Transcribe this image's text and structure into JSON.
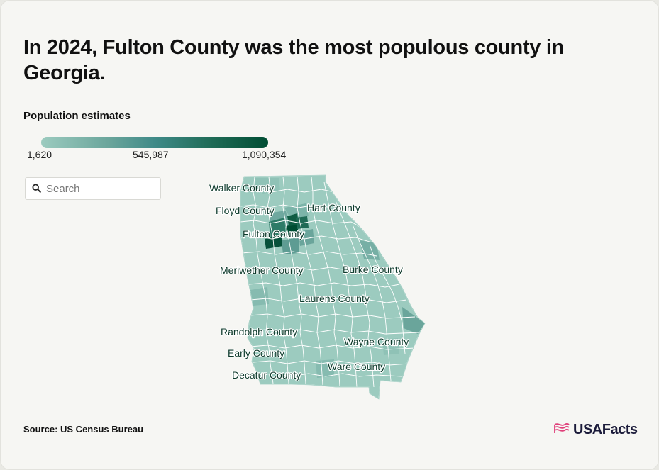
{
  "title": "In 2024, Fulton County was the most populous county in Georgia.",
  "legend": {
    "title": "Population estimates",
    "min_label": "1,620",
    "mid_label": "545,987",
    "max_label": "1,090,354",
    "min": 1620,
    "max": 1090354,
    "colors": [
      "#9ccbbf",
      "#3f8a88",
      "#004d33"
    ]
  },
  "search": {
    "placeholder": "Search",
    "icon": "search-icon"
  },
  "map": {
    "state": "Georgia",
    "base_color": "#9ccbbf",
    "labels": [
      "Walker County",
      "Floyd County",
      "Hart County",
      "Fulton County",
      "Meriwether County",
      "Burke County",
      "Laurens County",
      "Randolph County",
      "Wayne County",
      "Early County",
      "Ware County",
      "Decatur County"
    ]
  },
  "source": "Source: US Census Bureau",
  "brand": {
    "name": "USAFacts",
    "icon": "usafacts-flag-icon",
    "color": "#e0407a"
  }
}
